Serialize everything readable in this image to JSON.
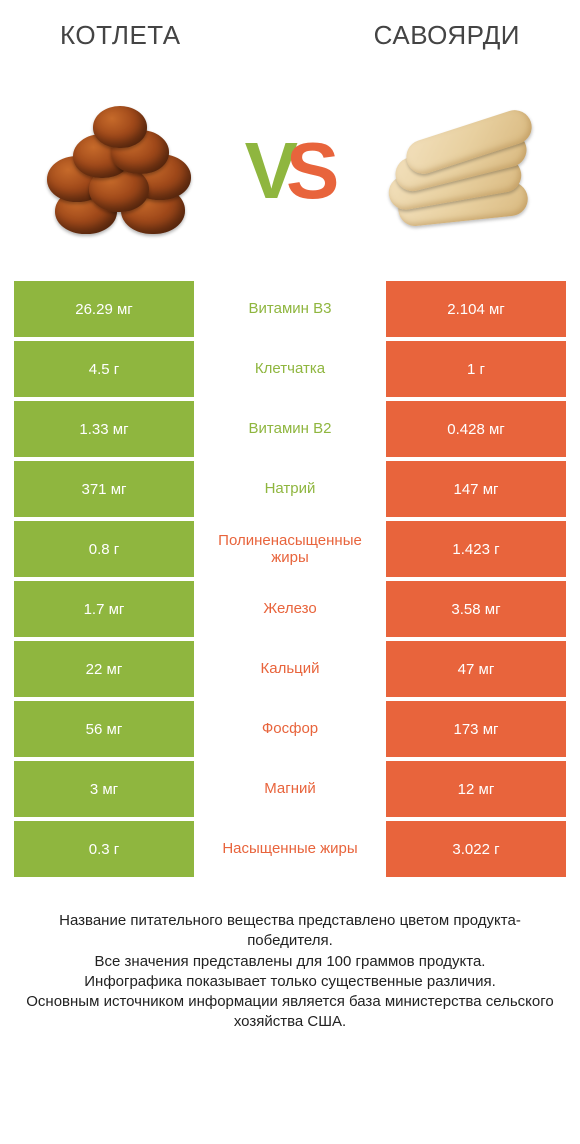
{
  "colors": {
    "green": "#8fb63f",
    "orange": "#e8643c",
    "v_color": "#8fb63f",
    "s_color": "#e8643c"
  },
  "header": {
    "left_title": "КОТЛЕТА",
    "right_title": "САВОЯРДИ"
  },
  "vs": {
    "v": "V",
    "s": "S"
  },
  "rows": [
    {
      "left": "26.29 мг",
      "label": "Витамин B3",
      "right": "2.104 мг",
      "winner": "left"
    },
    {
      "left": "4.5 г",
      "label": "Клетчатка",
      "right": "1 г",
      "winner": "left"
    },
    {
      "left": "1.33 мг",
      "label": "Витамин B2",
      "right": "0.428 мг",
      "winner": "left"
    },
    {
      "left": "371 мг",
      "label": "Натрий",
      "right": "147 мг",
      "winner": "left"
    },
    {
      "left": "0.8 г",
      "label": "Полиненасыщенные жиры",
      "right": "1.423 г",
      "winner": "right"
    },
    {
      "left": "1.7 мг",
      "label": "Железо",
      "right": "3.58 мг",
      "winner": "right"
    },
    {
      "left": "22 мг",
      "label": "Кальций",
      "right": "47 мг",
      "winner": "right"
    },
    {
      "left": "56 мг",
      "label": "Фосфор",
      "right": "173 мг",
      "winner": "right"
    },
    {
      "left": "3 мг",
      "label": "Магний",
      "right": "12 мг",
      "winner": "right"
    },
    {
      "left": "0.3 г",
      "label": "Насыщенные жиры",
      "right": "3.022 г",
      "winner": "right"
    }
  ],
  "footer": {
    "line1": "Название питательного вещества представлено цветом продукта-победителя.",
    "line2": "Все значения представлены для 100 граммов продукта.",
    "line3": "Инфографика показывает только существенные различия.",
    "line4": "Основным источником информации является база министерства сельского хозяйства США."
  }
}
